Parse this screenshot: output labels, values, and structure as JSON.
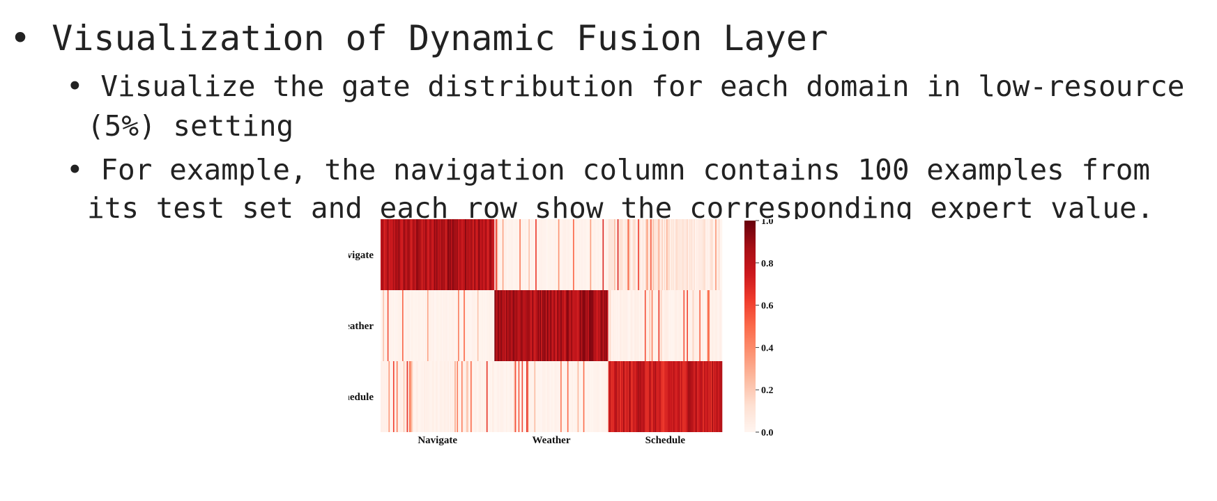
{
  "slide": {
    "title": "Visualization of Dynamic Fusion Layer",
    "bullet_1_line1": "Visualize the gate distribution for each domain in low-resource",
    "bullet_1_line2": "(5%) setting",
    "bullet_2_line1": "For example, the navigation column contains 100 examples from",
    "bullet_2_line2": "its test set and each row show the corresponding expert value.",
    "bullet_symbol": "•"
  },
  "chart_data": {
    "type": "heatmap",
    "title": "",
    "xlabel": "",
    "ylabel": "",
    "row_labels": [
      "Navigate",
      "Weather",
      "Schedule"
    ],
    "column_groups": [
      "Navigate",
      "Weather",
      "Schedule"
    ],
    "columns_per_group": 100,
    "colormap": "Reds",
    "colorbar": {
      "min": 0.0,
      "max": 1.0,
      "ticks": [
        "0.0",
        "0.2",
        "0.4",
        "0.6",
        "0.8",
        "1.0"
      ]
    },
    "block_means": [
      [
        0.95,
        0.03,
        0.15
      ],
      [
        0.03,
        0.95,
        0.05
      ],
      [
        0.05,
        0.03,
        0.88
      ]
    ]
  }
}
